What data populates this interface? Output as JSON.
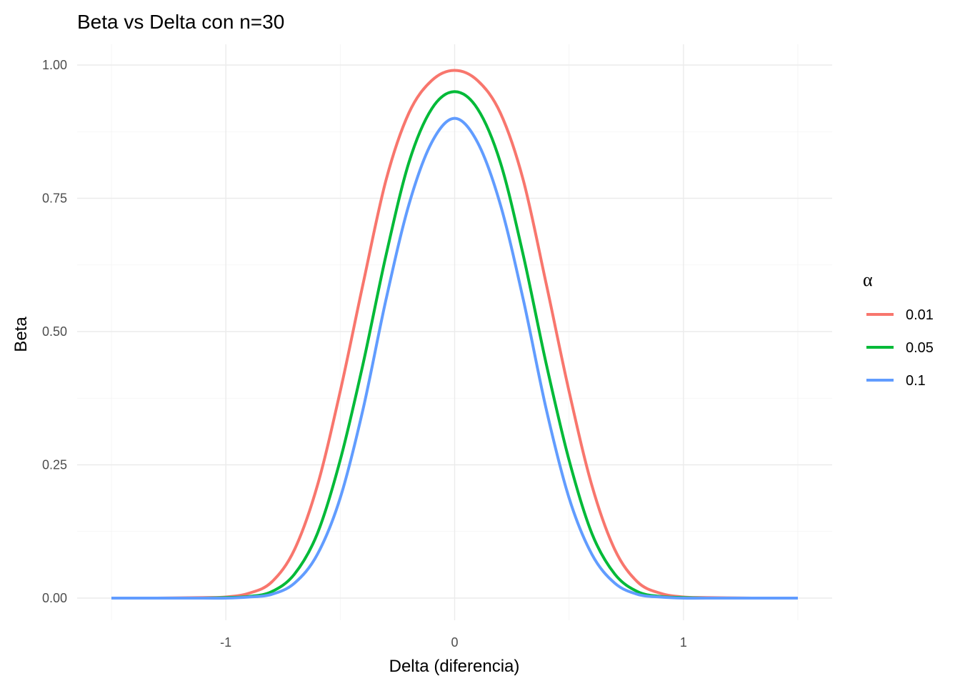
{
  "chart_data": {
    "type": "line",
    "title": "Beta vs Delta con n=30",
    "xlabel": "Delta (diferencia)",
    "ylabel": "Beta",
    "xlim": [
      -1.5,
      1.5
    ],
    "ylim": [
      0,
      1
    ],
    "x_ticks": [
      -1,
      0,
      1
    ],
    "x_tick_labels": [
      "-1",
      "0",
      "1"
    ],
    "y_ticks": [
      0,
      0.25,
      0.5,
      0.75,
      1
    ],
    "y_tick_labels": [
      "0.00",
      "0.25",
      "0.50",
      "0.75",
      "1.00"
    ],
    "grid": true,
    "legend_title": "α",
    "legend_position": "right",
    "x": [
      -1.5,
      -1.3,
      -1.1,
      -1.0,
      -0.9,
      -0.8,
      -0.7,
      -0.6,
      -0.5,
      -0.4,
      -0.3,
      -0.2,
      -0.1,
      0.0,
      0.1,
      0.2,
      0.3,
      0.4,
      0.5,
      0.6,
      0.7,
      0.8,
      0.9,
      1.0,
      1.1,
      1.3,
      1.5
    ],
    "series": [
      {
        "name": "0.01",
        "color": "#F8766D",
        "values": [
          0.0,
          0.0,
          0.001,
          0.002,
          0.009,
          0.03,
          0.091,
          0.211,
          0.388,
          0.59,
          0.784,
          0.91,
          0.971,
          0.99,
          0.971,
          0.91,
          0.784,
          0.59,
          0.388,
          0.211,
          0.091,
          0.03,
          0.009,
          0.002,
          0.001,
          0.0,
          0.0
        ]
      },
      {
        "name": "0.05",
        "color": "#00BA38",
        "values": [
          0.0,
          0.0,
          0.0,
          0.001,
          0.003,
          0.012,
          0.045,
          0.121,
          0.259,
          0.44,
          0.643,
          0.817,
          0.918,
          0.95,
          0.918,
          0.817,
          0.643,
          0.44,
          0.259,
          0.121,
          0.045,
          0.012,
          0.003,
          0.001,
          0.0,
          0.0,
          0.0
        ]
      },
      {
        "name": "0.1",
        "color": "#619CFF",
        "values": [
          0.0,
          0.0,
          0.0,
          0.0,
          0.002,
          0.007,
          0.028,
          0.082,
          0.188,
          0.355,
          0.56,
          0.738,
          0.855,
          0.9,
          0.855,
          0.738,
          0.56,
          0.355,
          0.188,
          0.082,
          0.028,
          0.007,
          0.002,
          0.0,
          0.0,
          0.0,
          0.0
        ]
      }
    ]
  }
}
